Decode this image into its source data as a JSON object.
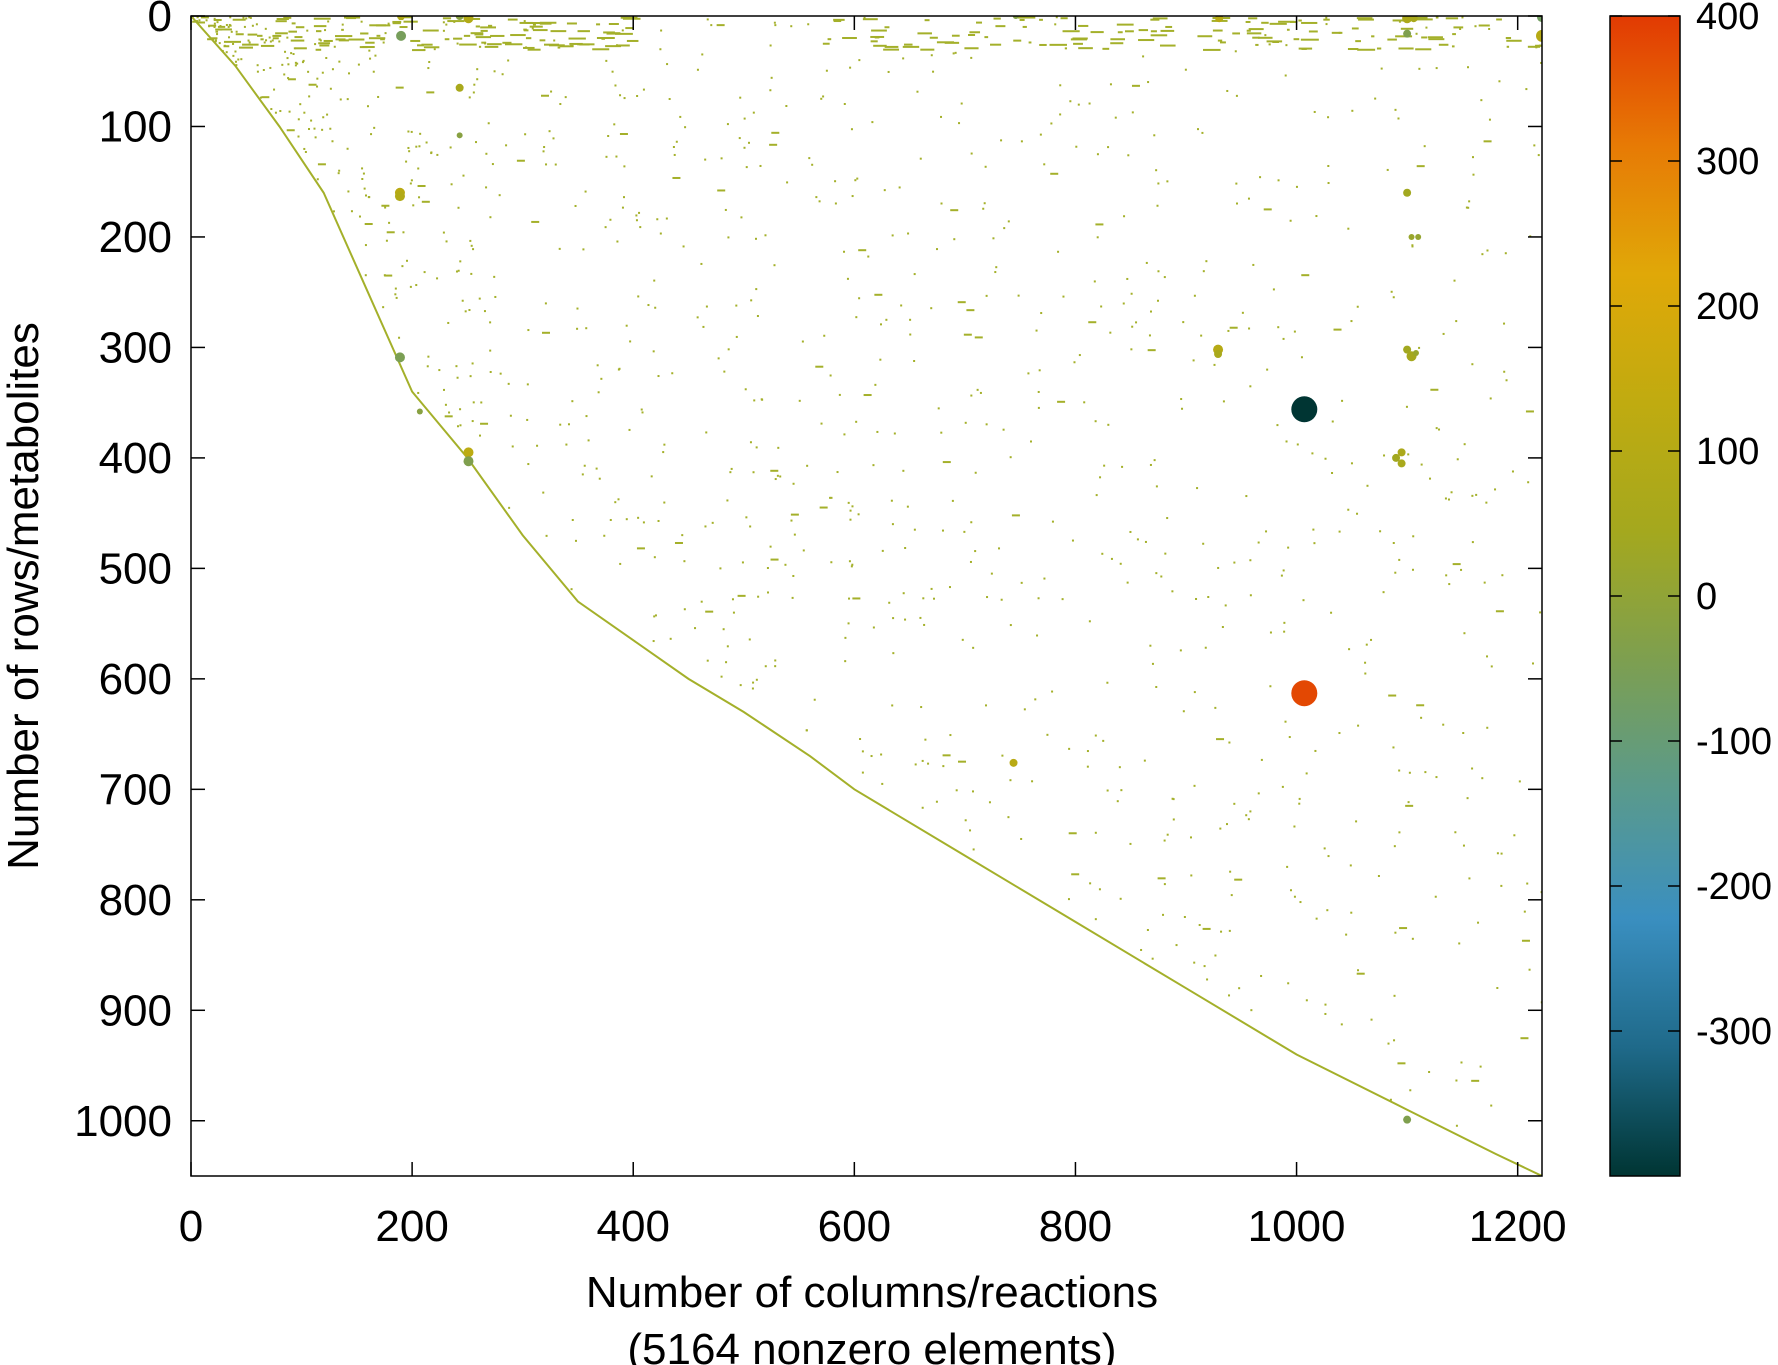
{
  "chart_data": {
    "type": "scatter",
    "title": "",
    "xlabel": "Number of columns/reactions",
    "xlabel_line2": "(5164 nonzero elements)",
    "ylabel": "Number of rows/metabolites",
    "xlim": [
      0,
      1222
    ],
    "ylim": [
      1050,
      0
    ],
    "y_inverted": true,
    "grid": false,
    "x_ticks": [
      0,
      200,
      400,
      600,
      800,
      1000,
      1200
    ],
    "y_ticks": [
      0,
      100,
      200,
      300,
      400,
      500,
      600,
      700,
      800,
      900,
      1000
    ],
    "colorbar": {
      "range": [
        -400,
        400
      ],
      "ticks": [
        400,
        300,
        200,
        100,
        0,
        -100,
        -200,
        -300
      ],
      "colors": [
        "#003533",
        "#1f6a8a",
        "#3a8fc0",
        "#5a9a8c",
        "#7d9f50",
        "#a4a81e",
        "#c0ab10",
        "#e0a808",
        "#e77a05",
        "#e23a03"
      ]
    },
    "color_zero": "#a4b02a",
    "points": [
      [
        1007,
        356,
        -400,
        13
      ],
      [
        1007,
        613,
        380,
        13
      ],
      [
        190,
        0,
        80,
        4
      ],
      [
        190,
        18,
        -60,
        5
      ],
      [
        243,
        0,
        -20,
        4
      ],
      [
        251,
        2,
        90,
        5
      ],
      [
        746,
        0,
        -30,
        3
      ],
      [
        930,
        2,
        110,
        4
      ],
      [
        1100,
        2,
        70,
        5
      ],
      [
        1106,
        2,
        60,
        4
      ],
      [
        1222,
        1,
        -70,
        5
      ],
      [
        1222,
        18,
        100,
        6
      ],
      [
        1100,
        16,
        -40,
        4
      ],
      [
        243,
        65,
        60,
        4
      ],
      [
        243,
        108,
        -20,
        3
      ],
      [
        189,
        160,
        110,
        5
      ],
      [
        189,
        163,
        90,
        5
      ],
      [
        1100,
        160,
        40,
        4
      ],
      [
        1110,
        200,
        10,
        3
      ],
      [
        1104,
        200,
        20,
        3
      ],
      [
        189,
        309,
        -50,
        5
      ],
      [
        929,
        302,
        100,
        5
      ],
      [
        929,
        306,
        60,
        4
      ],
      [
        1100,
        302,
        40,
        4
      ],
      [
        1104,
        308,
        50,
        5
      ],
      [
        1108,
        305,
        20,
        3
      ],
      [
        1095,
        395,
        70,
        4
      ],
      [
        1095,
        405,
        60,
        4
      ],
      [
        1090,
        400,
        40,
        4
      ],
      [
        251,
        395,
        120,
        5
      ],
      [
        251,
        403,
        -40,
        5
      ],
      [
        744,
        676,
        110,
        4
      ],
      [
        1100,
        999,
        -40,
        4
      ],
      [
        207,
        358,
        -20,
        3
      ]
    ]
  }
}
